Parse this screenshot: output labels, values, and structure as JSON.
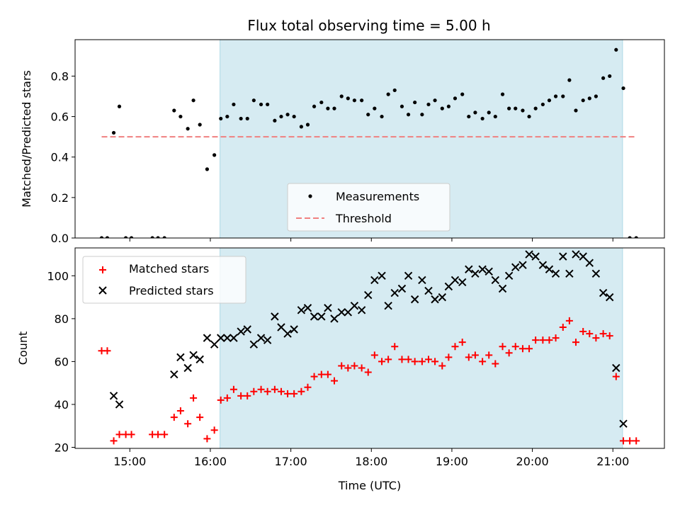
{
  "title": "Flux total observing time = 5.00 h",
  "chart_data": [
    {
      "type": "scatter",
      "ylabel": "Matched/Predicted stars",
      "ylim": [
        0,
        0.98
      ],
      "xlim": [
        14.32,
        21.64
      ],
      "yticks": [
        0.0,
        0.2,
        0.4,
        0.6,
        0.8
      ],
      "ytick_labels": [
        "0.0",
        "0.2",
        "0.4",
        "0.6",
        "0.8"
      ],
      "shaded_region": [
        16.12,
        21.12
      ],
      "legend_position": "lower center",
      "series": [
        {
          "name": "Measurements",
          "color": "#000000",
          "marker": "dot",
          "points": [
            [
              14.65,
              0.0
            ],
            [
              14.72,
              0.0
            ],
            [
              14.8,
              0.52
            ],
            [
              14.87,
              0.65
            ],
            [
              14.95,
              0.0
            ],
            [
              15.02,
              0.0
            ],
            [
              15.28,
              0.0
            ],
            [
              15.35,
              0.0
            ],
            [
              15.43,
              0.0
            ],
            [
              15.55,
              0.63
            ],
            [
              15.63,
              0.6
            ],
            [
              15.72,
              0.54
            ],
            [
              15.79,
              0.68
            ],
            [
              15.87,
              0.56
            ],
            [
              15.96,
              0.34
            ],
            [
              16.05,
              0.41
            ],
            [
              16.13,
              0.59
            ],
            [
              16.21,
              0.6
            ],
            [
              16.29,
              0.66
            ],
            [
              16.38,
              0.59
            ],
            [
              16.46,
              0.59
            ],
            [
              16.54,
              0.68
            ],
            [
              16.63,
              0.66
            ],
            [
              16.71,
              0.66
            ],
            [
              16.8,
              0.58
            ],
            [
              16.88,
              0.6
            ],
            [
              16.96,
              0.61
            ],
            [
              17.04,
              0.6
            ],
            [
              17.13,
              0.55
            ],
            [
              17.21,
              0.56
            ],
            [
              17.29,
              0.65
            ],
            [
              17.38,
              0.67
            ],
            [
              17.46,
              0.64
            ],
            [
              17.54,
              0.64
            ],
            [
              17.63,
              0.7
            ],
            [
              17.71,
              0.69
            ],
            [
              17.79,
              0.68
            ],
            [
              17.88,
              0.68
            ],
            [
              17.96,
              0.61
            ],
            [
              18.04,
              0.64
            ],
            [
              18.13,
              0.6
            ],
            [
              18.21,
              0.71
            ],
            [
              18.29,
              0.73
            ],
            [
              18.38,
              0.65
            ],
            [
              18.46,
              0.61
            ],
            [
              18.54,
              0.67
            ],
            [
              18.63,
              0.61
            ],
            [
              18.71,
              0.66
            ],
            [
              18.79,
              0.68
            ],
            [
              18.88,
              0.64
            ],
            [
              18.96,
              0.65
            ],
            [
              19.04,
              0.69
            ],
            [
              19.13,
              0.71
            ],
            [
              19.21,
              0.6
            ],
            [
              19.29,
              0.62
            ],
            [
              19.38,
              0.59
            ],
            [
              19.46,
              0.62
            ],
            [
              19.54,
              0.6
            ],
            [
              19.63,
              0.71
            ],
            [
              19.71,
              0.64
            ],
            [
              19.79,
              0.64
            ],
            [
              19.88,
              0.63
            ],
            [
              19.96,
              0.6
            ],
            [
              20.04,
              0.64
            ],
            [
              20.13,
              0.66
            ],
            [
              20.21,
              0.68
            ],
            [
              20.29,
              0.7
            ],
            [
              20.38,
              0.7
            ],
            [
              20.46,
              0.78
            ],
            [
              20.54,
              0.63
            ],
            [
              20.63,
              0.68
            ],
            [
              20.71,
              0.69
            ],
            [
              20.79,
              0.7
            ],
            [
              20.88,
              0.79
            ],
            [
              20.96,
              0.8
            ],
            [
              21.04,
              0.93
            ],
            [
              21.13,
              0.74
            ],
            [
              21.21,
              0.0
            ],
            [
              21.29,
              0.0
            ]
          ]
        },
        {
          "name": "Threshold",
          "color": "#f08080",
          "marker": "dashed-line",
          "points": [
            [
              14.65,
              0.5
            ],
            [
              21.29,
              0.5
            ]
          ]
        }
      ]
    },
    {
      "type": "scatter",
      "ylabel": "Count",
      "xlabel": "Time (UTC)",
      "ylim": [
        19.5,
        113
      ],
      "xlim": [
        14.32,
        21.64
      ],
      "yticks": [
        20,
        40,
        60,
        80,
        100
      ],
      "ytick_labels": [
        "20",
        "40",
        "60",
        "80",
        "100"
      ],
      "xticks": [
        15,
        16,
        17,
        18,
        19,
        20,
        21
      ],
      "xtick_labels": [
        "15:00",
        "16:00",
        "17:00",
        "18:00",
        "19:00",
        "20:00",
        "21:00"
      ],
      "shaded_region": [
        16.12,
        21.12
      ],
      "legend_position": "upper left",
      "series": [
        {
          "name": "Matched stars",
          "color": "#ff0000",
          "marker": "plus",
          "points": [
            [
              14.65,
              65
            ],
            [
              14.72,
              65
            ],
            [
              14.8,
              23
            ],
            [
              14.87,
              26
            ],
            [
              14.95,
              26
            ],
            [
              15.02,
              26
            ],
            [
              15.28,
              26
            ],
            [
              15.35,
              26
            ],
            [
              15.43,
              26
            ],
            [
              15.55,
              34
            ],
            [
              15.63,
              37
            ],
            [
              15.72,
              31
            ],
            [
              15.79,
              43
            ],
            [
              15.87,
              34
            ],
            [
              15.96,
              24
            ],
            [
              16.05,
              28
            ],
            [
              16.13,
              42
            ],
            [
              16.21,
              43
            ],
            [
              16.29,
              47
            ],
            [
              16.38,
              44
            ],
            [
              16.46,
              44
            ],
            [
              16.54,
              46
            ],
            [
              16.63,
              47
            ],
            [
              16.71,
              46
            ],
            [
              16.8,
              47
            ],
            [
              16.88,
              46
            ],
            [
              16.96,
              45
            ],
            [
              17.04,
              45
            ],
            [
              17.13,
              46
            ],
            [
              17.21,
              48
            ],
            [
              17.29,
              53
            ],
            [
              17.38,
              54
            ],
            [
              17.46,
              54
            ],
            [
              17.54,
              51
            ],
            [
              17.63,
              58
            ],
            [
              17.71,
              57
            ],
            [
              17.79,
              58
            ],
            [
              17.88,
              57
            ],
            [
              17.96,
              55
            ],
            [
              18.04,
              63
            ],
            [
              18.13,
              60
            ],
            [
              18.21,
              61
            ],
            [
              18.29,
              67
            ],
            [
              18.38,
              61
            ],
            [
              18.46,
              61
            ],
            [
              18.54,
              60
            ],
            [
              18.63,
              60
            ],
            [
              18.71,
              61
            ],
            [
              18.79,
              60
            ],
            [
              18.88,
              58
            ],
            [
              18.96,
              62
            ],
            [
              19.04,
              67
            ],
            [
              19.13,
              69
            ],
            [
              19.21,
              62
            ],
            [
              19.29,
              63
            ],
            [
              19.38,
              60
            ],
            [
              19.46,
              63
            ],
            [
              19.54,
              59
            ],
            [
              19.63,
              67
            ],
            [
              19.71,
              64
            ],
            [
              19.79,
              67
            ],
            [
              19.88,
              66
            ],
            [
              19.96,
              66
            ],
            [
              20.04,
              70
            ],
            [
              20.13,
              70
            ],
            [
              20.21,
              70
            ],
            [
              20.29,
              71
            ],
            [
              20.38,
              76
            ],
            [
              20.46,
              79
            ],
            [
              20.54,
              69
            ],
            [
              20.63,
              74
            ],
            [
              20.71,
              73
            ],
            [
              20.79,
              71
            ],
            [
              20.88,
              73
            ],
            [
              20.96,
              72
            ],
            [
              21.04,
              53
            ],
            [
              21.13,
              23
            ],
            [
              21.21,
              23
            ],
            [
              21.29,
              23
            ]
          ]
        },
        {
          "name": "Predicted stars",
          "color": "#000000",
          "marker": "x",
          "points": [
            [
              14.8,
              44
            ],
            [
              14.87,
              40
            ],
            [
              15.55,
              54
            ],
            [
              15.63,
              62
            ],
            [
              15.72,
              57
            ],
            [
              15.79,
              63
            ],
            [
              15.87,
              61
            ],
            [
              15.96,
              71
            ],
            [
              16.05,
              68
            ],
            [
              16.13,
              71
            ],
            [
              16.21,
              71
            ],
            [
              16.29,
              71
            ],
            [
              16.38,
              74
            ],
            [
              16.46,
              75
            ],
            [
              16.54,
              68
            ],
            [
              16.63,
              71
            ],
            [
              16.71,
              70
            ],
            [
              16.8,
              81
            ],
            [
              16.88,
              76
            ],
            [
              16.96,
              73
            ],
            [
              17.04,
              75
            ],
            [
              17.13,
              84
            ],
            [
              17.21,
              85
            ],
            [
              17.29,
              81
            ],
            [
              17.38,
              81
            ],
            [
              17.46,
              85
            ],
            [
              17.54,
              80
            ],
            [
              17.63,
              83
            ],
            [
              17.71,
              83
            ],
            [
              17.79,
              86
            ],
            [
              17.88,
              84
            ],
            [
              17.96,
              91
            ],
            [
              18.04,
              98
            ],
            [
              18.13,
              100
            ],
            [
              18.21,
              86
            ],
            [
              18.29,
              92
            ],
            [
              18.38,
              94
            ],
            [
              18.46,
              100
            ],
            [
              18.54,
              89
            ],
            [
              18.63,
              98
            ],
            [
              18.71,
              93
            ],
            [
              18.79,
              89
            ],
            [
              18.88,
              90
            ],
            [
              18.96,
              95
            ],
            [
              19.04,
              98
            ],
            [
              19.13,
              97
            ],
            [
              19.21,
              103
            ],
            [
              19.29,
              101
            ],
            [
              19.38,
              103
            ],
            [
              19.46,
              102
            ],
            [
              19.54,
              98
            ],
            [
              19.63,
              94
            ],
            [
              19.71,
              100
            ],
            [
              19.79,
              104
            ],
            [
              19.88,
              105
            ],
            [
              19.96,
              110
            ],
            [
              20.04,
              109
            ],
            [
              20.13,
              105
            ],
            [
              20.21,
              103
            ],
            [
              20.29,
              101
            ],
            [
              20.38,
              109
            ],
            [
              20.46,
              101
            ],
            [
              20.54,
              110
            ],
            [
              20.63,
              109
            ],
            [
              20.71,
              106
            ],
            [
              20.79,
              101
            ],
            [
              20.88,
              92
            ],
            [
              20.96,
              90
            ],
            [
              21.04,
              57
            ],
            [
              21.13,
              31
            ]
          ]
        }
      ]
    }
  ]
}
